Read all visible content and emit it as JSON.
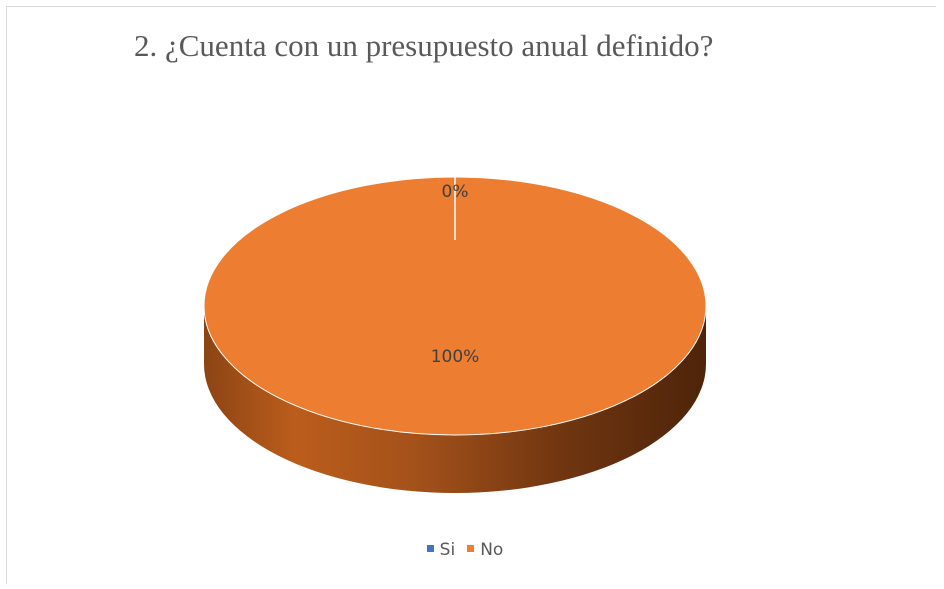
{
  "chart_data": {
    "type": "pie",
    "title": "2. ¿Cuenta con un presupuesto anual definido?",
    "categories": [
      "Si",
      "No"
    ],
    "values": [
      0,
      100
    ],
    "data_labels": [
      "0%",
      "100%"
    ],
    "colors": [
      "#4472c4",
      "#ed7d31"
    ],
    "legend_position": "bottom",
    "style": "3d"
  }
}
